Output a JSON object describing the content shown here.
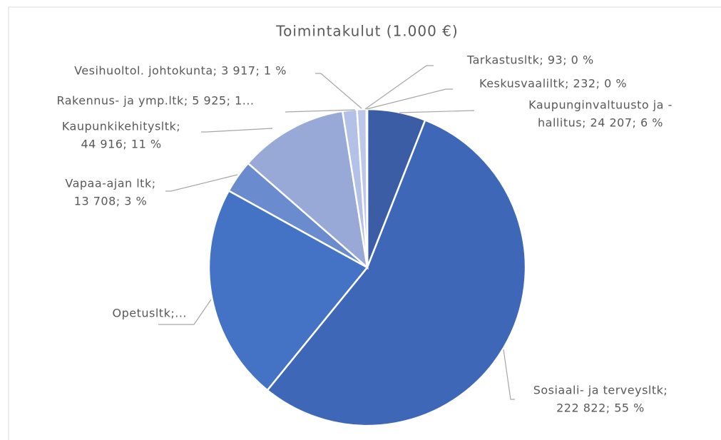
{
  "chart_data": {
    "type": "pie",
    "title": "Toimintakulut (1.000 €)",
    "values": [
      24207,
      222822,
      90000,
      13708,
      44916,
      5925,
      3917,
      232,
      93
    ],
    "value_labels": [
      [
        "Kaupunginvaltuusto ja -",
        "hallitus; 24 207; 6 %"
      ],
      [
        "Sosiaali- ja terveysltk;",
        "222 822; 55 %"
      ],
      [
        "Opetusltk;..."
      ],
      [
        "Vapaa-ajan ltk;",
        "13 708; 3 %"
      ],
      [
        "Kaupunkikehitysltk;",
        "44 916; 11 %"
      ],
      [
        "Rakennus- ja ymp.ltk; 5 925; 1..."
      ],
      [
        "Vesihuoltol. johtokunta; 3 917; 1 %"
      ],
      [
        "Keskusvaaliltk; 232; 0 %"
      ],
      [
        "Tarkastusltk; 93; 0 %"
      ]
    ],
    "colors": [
      "#3a5da6",
      "#3f67b8",
      "#4472c4",
      "#6b8bcf",
      "#98a9d8",
      "#b3c1e6",
      "#bcc8ea",
      "#c6d0ee",
      "#ced7f0"
    ]
  }
}
